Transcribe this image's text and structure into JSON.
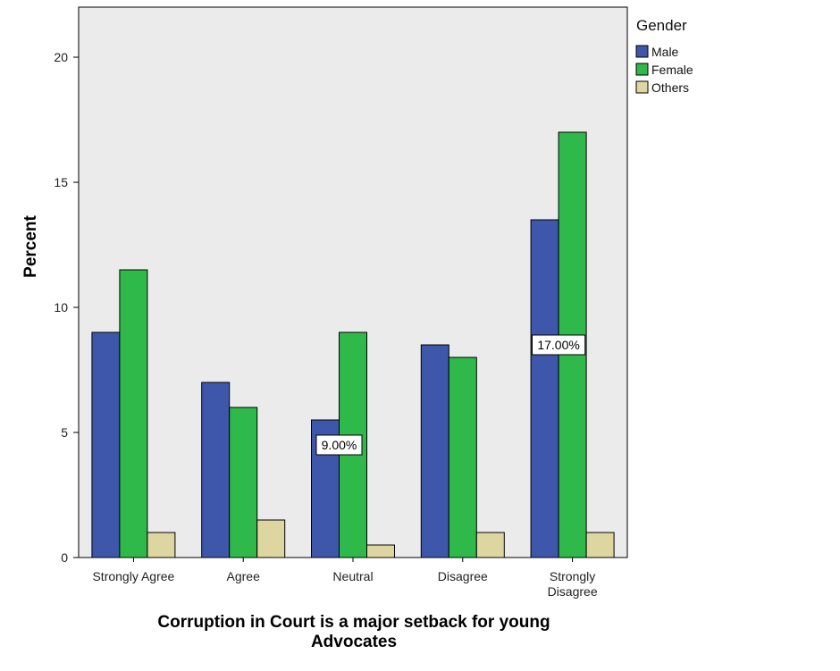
{
  "chart_data": {
    "type": "bar",
    "title": "",
    "xlabel": [
      "Corruption in Court is a major setback for young",
      "Advocates"
    ],
    "ylabel": "Percent",
    "ylim": [
      0,
      22
    ],
    "yticks": [
      0,
      5,
      10,
      15,
      20
    ],
    "categories": [
      [
        "Strongly Agree"
      ],
      [
        "Agree"
      ],
      [
        "Neutral"
      ],
      [
        "Disagree"
      ],
      [
        "Strongly",
        "Disagree"
      ]
    ],
    "legend": {
      "title": "Gender",
      "placement": "right"
    },
    "series": [
      {
        "name": "Male",
        "color": "#3f57aa",
        "values": [
          9.0,
          7.0,
          5.5,
          8.5,
          13.5
        ]
      },
      {
        "name": "Female",
        "color": "#2fb94a",
        "values": [
          11.5,
          6.0,
          9.0,
          8.0,
          17.0
        ]
      },
      {
        "name": "Others",
        "color": "#ddd6a0",
        "values": [
          1.0,
          1.5,
          0.5,
          1.0,
          1.0
        ]
      }
    ],
    "data_labels": [
      {
        "category_index": 2,
        "series_index": 1,
        "text": "9.00%"
      },
      {
        "category_index": 4,
        "series_index": 1,
        "text": "17.00%"
      }
    ],
    "grid": false,
    "plot_background": "#ebebeb"
  }
}
